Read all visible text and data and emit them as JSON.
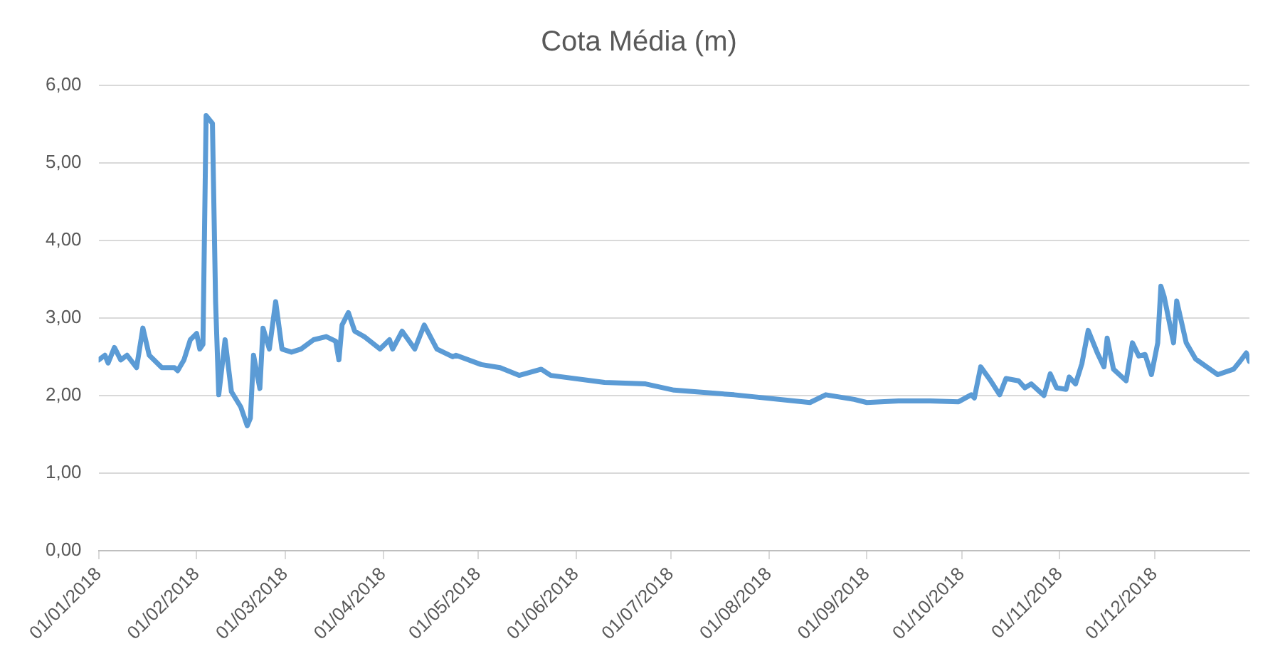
{
  "chart_data": {
    "type": "line",
    "title": "Cota Média (m)",
    "x": [
      "2018-01-01",
      "2018-01-03",
      "2018-01-04",
      "2018-01-06",
      "2018-01-08",
      "2018-01-10",
      "2018-01-13",
      "2018-01-15",
      "2018-01-17",
      "2018-01-21",
      "2018-01-25",
      "2018-01-26",
      "2018-01-28",
      "2018-01-30",
      "2018-02-01",
      "2018-02-02",
      "2018-02-03",
      "2018-02-04",
      "2018-02-06",
      "2018-02-07",
      "2018-02-08",
      "2018-02-10",
      "2018-02-12",
      "2018-02-15",
      "2018-02-17",
      "2018-02-18",
      "2018-02-19",
      "2018-02-21",
      "2018-02-22",
      "2018-02-24",
      "2018-02-26",
      "2018-02-28",
      "2018-03-03",
      "2018-03-06",
      "2018-03-10",
      "2018-03-14",
      "2018-03-17",
      "2018-03-18",
      "2018-03-19",
      "2018-03-21",
      "2018-03-23",
      "2018-03-26",
      "2018-03-31",
      "2018-04-03",
      "2018-04-04",
      "2018-04-07",
      "2018-04-11",
      "2018-04-14",
      "2018-04-18",
      "2018-04-23",
      "2018-04-24",
      "2018-05-02",
      "2018-05-08",
      "2018-05-14",
      "2018-05-21",
      "2018-05-24",
      "2018-06-10",
      "2018-06-23",
      "2018-07-02",
      "2018-07-21",
      "2018-08-14",
      "2018-08-19",
      "2018-08-28",
      "2018-09-01",
      "2018-09-11",
      "2018-09-21",
      "2018-09-30",
      "2018-10-04",
      "2018-10-05",
      "2018-10-07",
      "2018-10-10",
      "2018-10-13",
      "2018-10-15",
      "2018-10-19",
      "2018-10-21",
      "2018-10-23",
      "2018-10-27",
      "2018-10-29",
      "2018-10-31",
      "2018-11-03",
      "2018-11-04",
      "2018-11-06",
      "2018-11-08",
      "2018-11-10",
      "2018-11-13",
      "2018-11-15",
      "2018-11-16",
      "2018-11-18",
      "2018-11-22",
      "2018-11-24",
      "2018-11-26",
      "2018-11-28",
      "2018-11-30",
      "2018-12-02",
      "2018-12-03",
      "2018-12-04",
      "2018-12-07",
      "2018-12-08",
      "2018-12-11",
      "2018-12-14",
      "2018-12-21",
      "2018-12-26",
      "2018-12-28",
      "2018-12-30",
      "2018-12-31"
    ],
    "series": [
      {
        "color": "#5b9bd5",
        "values": [
          2.46,
          2.52,
          2.42,
          2.62,
          2.46,
          2.52,
          2.36,
          2.87,
          2.52,
          2.36,
          2.36,
          2.32,
          2.46,
          2.72,
          2.8,
          2.6,
          2.66,
          5.61,
          5.51,
          3.21,
          2.01,
          2.72,
          2.05,
          1.85,
          1.61,
          1.71,
          2.52,
          2.09,
          2.87,
          2.6,
          3.21,
          2.6,
          2.56,
          2.6,
          2.72,
          2.76,
          2.7,
          2.46,
          2.91,
          3.07,
          2.83,
          2.76,
          2.6,
          2.72,
          2.6,
          2.83,
          2.6,
          2.91,
          2.6,
          2.5,
          2.52,
          2.4,
          2.36,
          2.26,
          2.34,
          2.26,
          2.17,
          2.15,
          2.07,
          2.01,
          1.91,
          2.01,
          1.95,
          1.91,
          1.93,
          1.93,
          1.92,
          2.01,
          1.97,
          2.37,
          2.2,
          2.01,
          2.22,
          2.19,
          2.1,
          2.15,
          2.0,
          2.28,
          2.1,
          2.08,
          2.24,
          2.15,
          2.41,
          2.84,
          2.54,
          2.37,
          2.74,
          2.34,
          2.19,
          2.68,
          2.51,
          2.53,
          2.27,
          2.68,
          3.41,
          3.28,
          2.68,
          3.22,
          2.68,
          2.47,
          2.27,
          2.34,
          2.44,
          2.55,
          2.44
        ]
      }
    ],
    "xlim": [
      "2018-01-01",
      "2018-12-31"
    ],
    "xticks": [
      {
        "value": "2018-01-01",
        "label": "01/01/2018"
      },
      {
        "value": "2018-02-01",
        "label": "01/02/2018"
      },
      {
        "value": "2018-03-01",
        "label": "01/03/2018"
      },
      {
        "value": "2018-04-01",
        "label": "01/04/2018"
      },
      {
        "value": "2018-05-01",
        "label": "01/05/2018"
      },
      {
        "value": "2018-06-01",
        "label": "01/06/2018"
      },
      {
        "value": "2018-07-01",
        "label": "01/07/2018"
      },
      {
        "value": "2018-08-01",
        "label": "01/08/2018"
      },
      {
        "value": "2018-09-01",
        "label": "01/09/2018"
      },
      {
        "value": "2018-10-01",
        "label": "01/10/2018"
      },
      {
        "value": "2018-11-01",
        "label": "01/11/2018"
      },
      {
        "value": "2018-12-01",
        "label": "01/12/2018"
      }
    ],
    "ylim": [
      0,
      6
    ],
    "yticks": [
      {
        "value": 0,
        "label": "0,00"
      },
      {
        "value": 1,
        "label": "1,00"
      },
      {
        "value": 2,
        "label": "2,00"
      },
      {
        "value": 3,
        "label": "3,00"
      },
      {
        "value": 4,
        "label": "4,00"
      },
      {
        "value": 5,
        "label": "5,00"
      },
      {
        "value": 6,
        "label": "6,00"
      }
    ],
    "grid": "y",
    "legend": false,
    "marker": "none",
    "line_style": "solid"
  }
}
